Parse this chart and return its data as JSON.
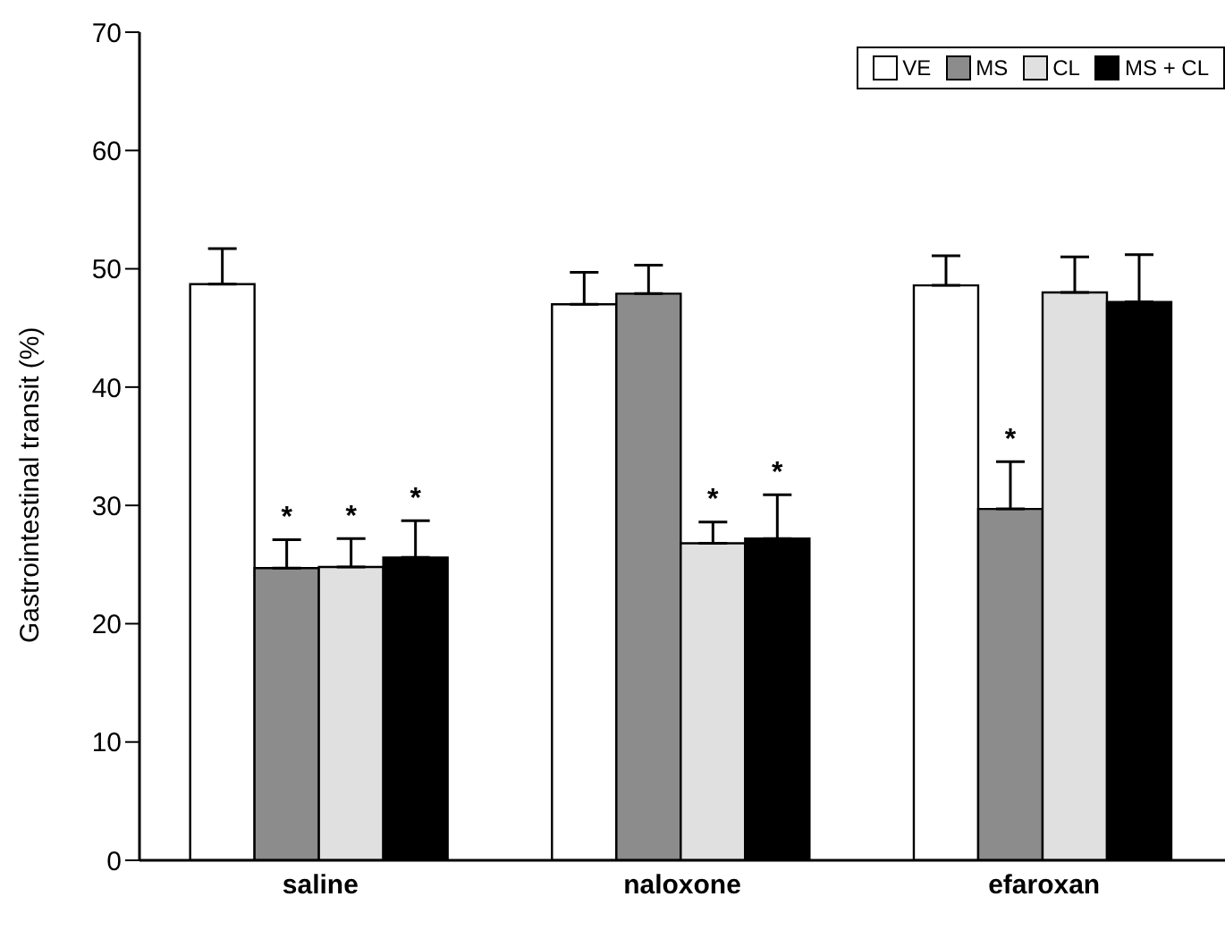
{
  "chart_data": {
    "type": "bar",
    "ylabel": "Gastrointestinal transit (%)",
    "categories": [
      "saline",
      "naloxone",
      "efaroxan"
    ],
    "series": [
      {
        "name": "VE",
        "color": "#ffffff",
        "values": [
          48.7,
          47,
          48.6
        ],
        "errors": [
          3,
          2.7,
          2.5
        ]
      },
      {
        "name": "MS",
        "color": "#8c8c8c",
        "values": [
          24.7,
          47.9,
          29.7
        ],
        "errors": [
          2.4,
          2.4,
          4
        ],
        "value_labels": [
          "*",
          null,
          "*"
        ]
      },
      {
        "name": "CL",
        "color": "#e0e0e0",
        "values": [
          24.8,
          26.8,
          48
        ],
        "errors": [
          2.4,
          1.8,
          3
        ],
        "value_labels": [
          "*",
          "*",
          null
        ]
      },
      {
        "name": "MS + CL",
        "color": "#000000",
        "values": [
          25.6,
          27.2,
          47.2
        ],
        "errors": [
          3.1,
          3.7,
          4
        ],
        "value_labels": [
          "*",
          "*",
          null
        ]
      }
    ],
    "ylim": [
      0,
      70
    ],
    "yticks": [
      0,
      10,
      20,
      30,
      40,
      50,
      60,
      70
    ],
    "legend": "top right"
  }
}
